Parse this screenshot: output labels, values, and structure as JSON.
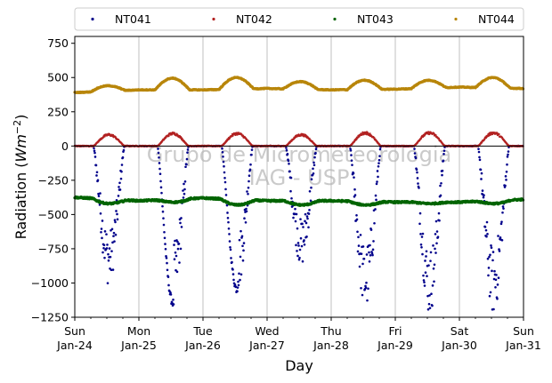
{
  "chart_data": {
    "type": "scatter",
    "xlabel": "Day",
    "ylabel": "Radiation (Wm−2)",
    "ylabel_parts": {
      "main": "Radiation (",
      "italic": "Wm",
      "sup": "−2",
      "close": ")"
    },
    "ylim": [
      -1250,
      800
    ],
    "y_ticks": [
      -1250,
      -1000,
      -750,
      -500,
      -250,
      0,
      250,
      500,
      750
    ],
    "y_tick_labels": [
      "−1250",
      "−1000",
      "−750",
      "−500",
      "−250",
      "0",
      "250",
      "500",
      "750"
    ],
    "xlim": [
      "2016-01-24",
      "2016-01-31"
    ],
    "x_ticks": [
      {
        "day": "Sun",
        "date": "Jan-24"
      },
      {
        "day": "Mon",
        "date": "Jan-25"
      },
      {
        "day": "Tue",
        "date": "Jan-26"
      },
      {
        "day": "Wed",
        "date": "Jan-27"
      },
      {
        "day": "Thu",
        "date": "Jan-28"
      },
      {
        "day": "Fri",
        "date": "Jan-29"
      },
      {
        "day": "Sat",
        "date": "Jan-30"
      },
      {
        "day": "Sun",
        "date": "Jan-31"
      }
    ],
    "grid": "vertical lines at day boundaries",
    "legend_position": "top, above plot",
    "zero_line": 0,
    "watermark": [
      "Grupo de Micrometeorologia",
      "IAG - USP"
    ],
    "series": [
      {
        "name": "NT041",
        "color": "#00008b",
        "daily_min": [
          -1020,
          -1175,
          -1075,
          -880,
          -1210,
          -1240,
          -1240
        ],
        "baseline": 0
      },
      {
        "name": "NT042",
        "color": "#b22222",
        "daily_max": [
          90,
          100,
          100,
          90,
          105,
          105,
          105
        ],
        "baseline": 0
      },
      {
        "name": "NT043",
        "color": "#006400",
        "daily_night": [
          -375,
          -400,
          -380,
          -400,
          -400,
          -410,
          -410,
          -390
        ],
        "daily_day": [
          -420,
          -410,
          -430,
          -430,
          -430,
          -420,
          -420
        ]
      },
      {
        "name": "NT044",
        "color": "#b8860b",
        "daily_night": [
          390,
          410,
          410,
          420,
          410,
          415,
          430,
          420
        ],
        "daily_peak": [
          440,
          495,
          500,
          470,
          480,
          480,
          500
        ]
      }
    ]
  }
}
